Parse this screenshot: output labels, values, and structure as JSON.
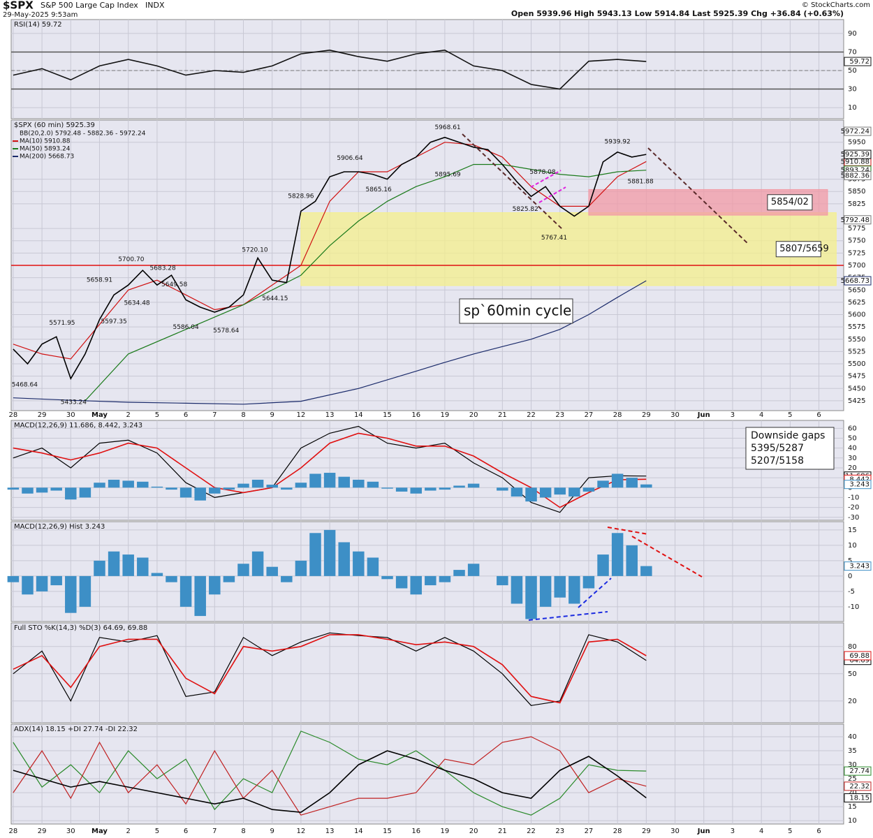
{
  "header": {
    "symbol": "$SPX",
    "name": "S&P 500 Large Cap Index",
    "exchange": "INDX",
    "datetime": "29-May-2025 9:53am",
    "quote": "Open 5939.96  High 5943.13  Low 5914.84  Last 5925.39  Chg +36.84 (+0.63%)",
    "copyright": "© StockCharts.com"
  },
  "x_axis": {
    "categories": [
      "28",
      "29",
      "30",
      "May",
      "2",
      "5",
      "6",
      "7",
      "8",
      "9",
      "12",
      "13",
      "14",
      "15",
      "16",
      "19",
      "20",
      "21",
      "22",
      "23",
      "27",
      "28",
      "29",
      "30",
      "Jun",
      "3",
      "4",
      "5",
      "6"
    ],
    "xlim": [
      -0.07,
      28.86
    ]
  },
  "chart_data": [
    {
      "type": "line",
      "title": "RSI(14) 59.72",
      "ylim": [
        -2,
        105
      ],
      "yticks": [
        10,
        30,
        50,
        70,
        90
      ],
      "series": [
        {
          "color": "#111111",
          "x": [
            0,
            1,
            2,
            3,
            4,
            5,
            6,
            7,
            8,
            9,
            10,
            11,
            12,
            13,
            14,
            15,
            16,
            17,
            18,
            19,
            20,
            21,
            22
          ],
          "values": [
            45,
            52,
            40,
            55,
            62,
            55,
            45,
            50,
            48,
            55,
            68,
            72,
            65,
            60,
            68,
            72,
            55,
            50,
            35,
            30,
            60,
            62,
            59.72
          ]
        }
      ],
      "levels": [
        {
          "value": 70,
          "color": "#555555"
        },
        {
          "value": 50,
          "color": "#777777",
          "dashed": true
        },
        {
          "value": 30,
          "color": "#555555"
        }
      ]
    },
    {
      "type": "line",
      "title": "$SPX (60 min) 5925.39",
      "ylim": [
        5405,
        5995
      ],
      "yticks": [
        5425,
        5450,
        5475,
        5500,
        5525,
        5550,
        5575,
        5600,
        5625,
        5650,
        5675,
        5700,
        5725,
        5750,
        5775,
        5825,
        5850,
        5875,
        5950
      ],
      "legend": [
        "BB(20,2.0) 5792.48 - 5882.36 - 5972.24"
      ],
      "tags": [
        5972.24,
        5882.36,
        5792.48
      ],
      "series": [
        {
          "name": "MA(10) 5910.88",
          "color": "#d01010",
          "x": [
            0,
            1,
            2,
            3,
            4,
            5,
            6,
            7,
            8,
            9,
            10,
            11,
            12,
            13,
            14,
            15,
            16,
            17,
            18,
            19,
            20,
            21,
            22
          ],
          "values": [
            5540,
            5520,
            5510,
            5580,
            5650,
            5670,
            5640,
            5610,
            5620,
            5660,
            5700,
            5830,
            5890,
            5890,
            5920,
            5950,
            5945,
            5920,
            5860,
            5820,
            5820,
            5880,
            5910.88
          ]
        },
        {
          "name": "MA(50) 5893.24",
          "color": "#1a7a1a",
          "x": [
            2.5,
            4,
            6,
            8,
            10,
            11,
            12,
            13,
            14,
            15,
            16,
            17,
            18,
            19,
            20,
            21,
            22
          ],
          "values": [
            5425,
            5520,
            5570,
            5620,
            5680,
            5740,
            5790,
            5830,
            5860,
            5880,
            5905,
            5905,
            5895,
            5885,
            5880,
            5890,
            5893.24
          ]
        },
        {
          "name": "MA(200) 5668.73",
          "color": "#1a2a6a",
          "x": [
            0,
            2,
            4,
            6,
            8,
            10,
            12,
            14,
            15,
            16,
            17,
            18,
            19,
            20,
            21,
            22
          ],
          "values": [
            5431,
            5426,
            5422,
            5420,
            5418,
            5424,
            5450,
            5485,
            5503,
            5520,
            5535,
            5550,
            5570,
            5600,
            5635,
            5668.73
          ]
        },
        {
          "name": "$SPX",
          "color": "#000000",
          "x": [
            0,
            0.5,
            1,
            1.5,
            2,
            2.5,
            3,
            3.5,
            4,
            4.5,
            5,
            5.5,
            6,
            6.5,
            7,
            7.5,
            8,
            8.5,
            9,
            9.5,
            10,
            10.5,
            11,
            11.5,
            12,
            12.5,
            13,
            13.5,
            14,
            14.5,
            15,
            15.5,
            16,
            16.5,
            17,
            17.5,
            18,
            18.5,
            19,
            19.5,
            20,
            20.5,
            21,
            21.5,
            22
          ],
          "values": [
            5530,
            5500,
            5540,
            5555,
            5470,
            5520,
            5590,
            5640,
            5660,
            5690,
            5660,
            5680,
            5630,
            5615,
            5605,
            5615,
            5640,
            5715,
            5670,
            5665,
            5810,
            5830,
            5880,
            5890,
            5890,
            5885,
            5875,
            5905,
            5920,
            5950,
            5960,
            5950,
            5940,
            5935,
            5905,
            5870,
            5840,
            5860,
            5820,
            5800,
            5820,
            5910,
            5930,
            5920,
            5925.39
          ]
        }
      ],
      "levels": [
        {
          "value": 5700,
          "color": "#e01010"
        }
      ],
      "zones": [
        {
          "from": 5807,
          "to": 5659,
          "x": [
            10,
            28.6
          ],
          "label": "5807/5659",
          "color": "#f4ef8c"
        },
        {
          "from": 5854,
          "to": 5802,
          "x": [
            20,
            28.3
          ],
          "label": "5854/02",
          "color": "#f19aa6"
        }
      ],
      "annotations": [
        {
          "x": 0.4,
          "value": 5468.64,
          "pos": "below"
        },
        {
          "x": 1.7,
          "value": 5571.95,
          "pos": "above"
        },
        {
          "x": 2.1,
          "value": 5433.24,
          "pos": "below"
        },
        {
          "x": 3,
          "value": 5658.91,
          "pos": "above"
        },
        {
          "x": 3.5,
          "value": 5597.35,
          "pos": "below"
        },
        {
          "x": 4.1,
          "value": 5700.7,
          "label": "5700.70",
          "pos": "above"
        },
        {
          "x": 5.2,
          "value": 5683.28,
          "pos": "above"
        },
        {
          "x": 4.3,
          "value": 5634.48,
          "pos": "below"
        },
        {
          "x": 5.6,
          "value": 5649.58,
          "pos": "above"
        },
        {
          "x": 6,
          "value": 5586.04,
          "pos": "below"
        },
        {
          "x": 7.4,
          "value": 5578.64,
          "pos": "below"
        },
        {
          "x": 8.4,
          "value": 5720.1,
          "label": "5720.10",
          "pos": "above"
        },
        {
          "x": 9.1,
          "value": 5644.15,
          "pos": "below"
        },
        {
          "x": 10,
          "value": 5828.96,
          "pos": "above"
        },
        {
          "x": 11.7,
          "value": 5906.64,
          "pos": "above"
        },
        {
          "x": 12.7,
          "value": 5865.16,
          "pos": "below"
        },
        {
          "x": 15.1,
          "value": 5968.61,
          "pos": "above"
        },
        {
          "x": 15.1,
          "value": 5895.69,
          "pos": "below"
        },
        {
          "x": 18.4,
          "value": 5878.08,
          "pos": "above"
        },
        {
          "x": 17.8,
          "value": 5825.82,
          "pos": "below"
        },
        {
          "x": 18.8,
          "value": 5767.41,
          "pos": "below"
        },
        {
          "x": 21,
          "value": 5939.92,
          "pos": "above"
        },
        {
          "x": 21.8,
          "value": 5881.88,
          "pos": "below"
        }
      ],
      "note": "sp`60min cycle"
    },
    {
      "type": "line",
      "title": "MACD(12,26,9) 11.686, 8.442, 3.243",
      "ylim": [
        -33,
        68
      ],
      "yticks": [
        -30,
        -20,
        -10,
        0,
        10,
        20,
        30,
        40,
        50,
        60
      ],
      "series": [
        {
          "color": "#000000",
          "x": [
            0,
            1,
            2,
            3,
            4,
            5,
            6,
            7,
            8,
            9,
            10,
            11,
            12,
            13,
            14,
            15,
            16,
            17,
            18,
            19,
            20,
            21,
            22
          ],
          "values": [
            30,
            40,
            20,
            45,
            48,
            35,
            5,
            -10,
            -5,
            0,
            40,
            55,
            62,
            45,
            40,
            45,
            25,
            10,
            -15,
            -25,
            10,
            12,
            11.686
          ]
        },
        {
          "color": "#e01010",
          "x": [
            0,
            1,
            2,
            3,
            4,
            5,
            6,
            7,
            8,
            9,
            10,
            11,
            12,
            13,
            14,
            15,
            16,
            17,
            18,
            19,
            20,
            21,
            22
          ],
          "values": [
            40,
            35,
            28,
            35,
            45,
            40,
            20,
            0,
            -5,
            0,
            20,
            45,
            55,
            50,
            42,
            42,
            32,
            15,
            0,
            -20,
            -5,
            8,
            8.442
          ]
        }
      ],
      "note": [
        "Downside gaps",
        "5395/5287",
        "5207/5158"
      ]
    },
    {
      "type": "bar",
      "title": "MACD(12,26,9) Hist 3.243",
      "ylim": [
        -14.8,
        17.7
      ],
      "yticks": [
        -10,
        -5,
        0,
        5,
        10,
        15
      ],
      "series": [
        {
          "color": "#3d8fc6",
          "x": [
            0,
            0.5,
            1,
            1.5,
            2,
            2.5,
            3,
            3.5,
            4,
            4.5,
            5,
            5.5,
            6,
            6.5,
            7,
            7.5,
            8,
            8.5,
            9,
            9.5,
            10,
            10.5,
            11,
            11.5,
            12,
            12.5,
            13,
            13.5,
            14,
            14.5,
            15,
            15.5,
            16,
            16.5,
            17,
            17.5,
            18,
            18.5,
            19,
            19.5,
            20,
            20.5,
            21,
            21.5,
            22
          ],
          "values": [
            -2,
            -6,
            -5,
            -3,
            -12,
            -10,
            5,
            8,
            7,
            6,
            1,
            -2,
            -10,
            -13,
            -6,
            -2,
            4,
            8,
            3,
            -2,
            5,
            14,
            15,
            11,
            8,
            6,
            -1,
            -4,
            -6,
            -3,
            -2,
            2,
            4,
            0,
            -3,
            -9,
            -14,
            -10,
            -7,
            -9,
            -4,
            7,
            14,
            10,
            3.243
          ]
        }
      ]
    },
    {
      "type": "line",
      "title": "Full STO %K(14,3) %D(3) 64.69, 69.88",
      "ylim": [
        -4,
        106
      ],
      "yticks": [
        20,
        50,
        80
      ],
      "series": [
        {
          "color": "#000000",
          "x": [
            0,
            1,
            2,
            3,
            4,
            5,
            6,
            7,
            8,
            9,
            10,
            11,
            12,
            13,
            14,
            15,
            16,
            17,
            18,
            19,
            20,
            21,
            22
          ],
          "values": [
            50,
            75,
            20,
            90,
            85,
            92,
            25,
            30,
            90,
            70,
            85,
            95,
            92,
            90,
            75,
            90,
            75,
            50,
            15,
            20,
            93,
            85,
            64.69
          ]
        },
        {
          "color": "#e01010",
          "x": [
            0,
            1,
            2,
            3,
            4,
            5,
            6,
            7,
            8,
            9,
            10,
            11,
            12,
            13,
            14,
            15,
            16,
            17,
            18,
            19,
            20,
            21,
            22
          ],
          "values": [
            55,
            70,
            35,
            80,
            88,
            88,
            45,
            28,
            80,
            75,
            80,
            93,
            93,
            88,
            82,
            85,
            80,
            60,
            25,
            18,
            85,
            88,
            69.88
          ]
        }
      ]
    },
    {
      "type": "line",
      "title": "ADX(14) 18.15 +DI 27.74 -DI 22.32",
      "ylim": [
        8.8,
        44.5
      ],
      "yticks": [
        10,
        15,
        20,
        25,
        30,
        35,
        40
      ],
      "series": [
        {
          "color": "#2a8a2a",
          "x": [
            0,
            1,
            2,
            3,
            4,
            5,
            6,
            7,
            8,
            9,
            10,
            11,
            12,
            13,
            14,
            15,
            16,
            17,
            18,
            19,
            20,
            21,
            22
          ],
          "values": [
            38,
            22,
            30,
            20,
            35,
            25,
            32,
            14,
            25,
            20,
            42,
            38,
            32,
            30,
            35,
            28,
            20,
            15,
            12,
            18,
            30,
            28,
            27.74
          ]
        },
        {
          "color": "#c02020",
          "x": [
            0,
            1,
            2,
            3,
            4,
            5,
            6,
            7,
            8,
            9,
            10,
            11,
            12,
            13,
            14,
            15,
            16,
            17,
            18,
            19,
            20,
            21,
            22
          ],
          "values": [
            20,
            35,
            18,
            38,
            20,
            30,
            16,
            35,
            18,
            28,
            12,
            15,
            18,
            18,
            20,
            32,
            30,
            38,
            40,
            35,
            20,
            25,
            22.32
          ]
        },
        {
          "color": "#000000",
          "x": [
            0,
            1,
            2,
            3,
            4,
            5,
            6,
            7,
            8,
            9,
            10,
            11,
            12,
            13,
            14,
            15,
            16,
            17,
            18,
            19,
            20,
            21,
            22
          ],
          "values": [
            28,
            25,
            22,
            24,
            22,
            20,
            18,
            16,
            18,
            14,
            13,
            20,
            30,
            35,
            32,
            28,
            25,
            20,
            18,
            28,
            33,
            26,
            18.15
          ]
        }
      ]
    }
  ]
}
